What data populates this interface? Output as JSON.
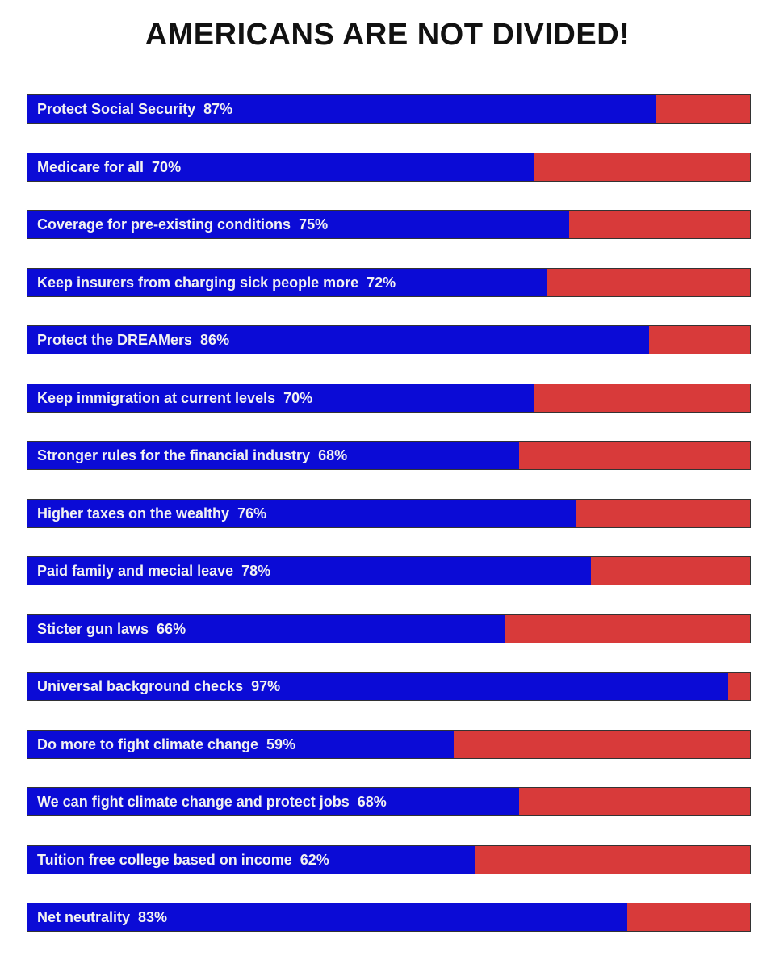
{
  "chart_data": {
    "type": "bar",
    "orientation": "horizontal-stacked",
    "title": "AMERICANS ARE NOT DIVIDED!",
    "categories": [
      "Protect Social Security",
      "Medicare for all",
      "Coverage for pre-existing conditions",
      "Keep insurers from charging sick people more",
      "Protect the DREAMers",
      "Keep immigration at current levels",
      "Stronger rules for the financial industry",
      "Higher taxes on the wealthy",
      "Paid family and mecial leave",
      "Sticter gun laws",
      "Universal background checks",
      "Do more to fight climate change",
      "We can fight climate change and protect jobs",
      "Tuition free college based on income",
      "Net neutrality"
    ],
    "values": [
      87,
      70,
      75,
      72,
      86,
      70,
      68,
      76,
      78,
      66,
      97,
      59,
      68,
      62,
      83
    ],
    "labels": [
      "87%",
      "70%",
      "75%",
      "72%",
      "86%",
      "70%",
      "68%",
      "76%",
      "78%",
      "66%",
      "97%",
      "59%",
      "68%",
      "62%",
      "83%"
    ],
    "xlim": [
      0,
      100
    ],
    "colors": {
      "support": "#0b0bd6",
      "remainder": "#d83a3a"
    }
  }
}
